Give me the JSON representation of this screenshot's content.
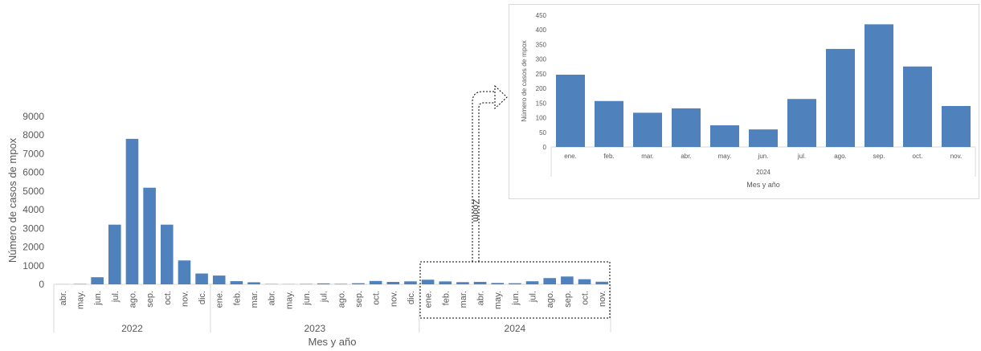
{
  "chart_data": [
    {
      "type": "bar",
      "color": "#4f81bd",
      "ylabel": "Número de casos de mpox",
      "xlabel": "Mes y año",
      "ylim": [
        0,
        9000
      ],
      "yticks": [
        "0",
        "1000",
        "2000",
        "3000",
        "4000",
        "5000",
        "6000",
        "7000",
        "8000",
        "9000"
      ],
      "groups": [
        {
          "year": "2022",
          "months": [
            "abr.",
            "may.",
            "jun.",
            "jul.",
            "ago.",
            "sep.",
            "oct.",
            "nov.",
            "dic."
          ],
          "values": [
            5,
            20,
            380,
            3200,
            7800,
            5180,
            3200,
            1280,
            580
          ]
        },
        {
          "year": "2023",
          "months": [
            "ene.",
            "feb.",
            "mar.",
            "abr.",
            "may.",
            "jun.",
            "jul.",
            "ago.",
            "sep.",
            "oct.",
            "nov.",
            "dic."
          ],
          "values": [
            470,
            170,
            110,
            15,
            10,
            20,
            50,
            25,
            60,
            180,
            130,
            160
          ]
        },
        {
          "year": "2024",
          "months": [
            "ene.",
            "feb.",
            "mar.",
            "abr.",
            "may.",
            "jun.",
            "jul.",
            "ago.",
            "sep.",
            "oct.",
            "nov."
          ],
          "values": [
            247,
            157,
            117,
            132,
            74,
            60,
            164,
            335,
            419,
            275,
            140
          ]
        }
      ]
    },
    {
      "type": "bar",
      "color": "#4f81bd",
      "ylabel": "Número de casos de mpox",
      "xlabel": "Mes y  año",
      "ylim": [
        0,
        450
      ],
      "yticks": [
        "0",
        "50",
        "100",
        "150",
        "200",
        "250",
        "300",
        "350",
        "400",
        "450"
      ],
      "year": "2024",
      "categories": [
        "ene.",
        "feb.",
        "mar.",
        "abr.",
        "may.",
        "jun.",
        "jul.",
        "ago.",
        "sep.",
        "oct.",
        "nov."
      ],
      "values": [
        247,
        157,
        117,
        132,
        74,
        60,
        164,
        335,
        419,
        275,
        140
      ]
    }
  ],
  "zoom_label": "Zoom"
}
